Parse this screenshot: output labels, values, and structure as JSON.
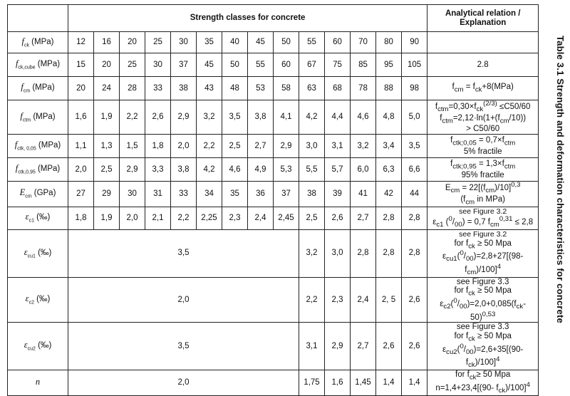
{
  "header": {
    "title": "Strength classes for concrete",
    "explanation": "Analytical relation / Explanation"
  },
  "side_caption": "Table 3.1   Strength and deformation characteristics for concrete",
  "rows": [
    {
      "param": "f<sub>ck</sub> (MPa)",
      "values": [
        "12",
        "16",
        "20",
        "25",
        "30",
        "35",
        "40",
        "45",
        "50",
        "55",
        "60",
        "70",
        "80",
        "90"
      ],
      "explanation": ""
    },
    {
      "param": "f<sub>ck,cube</sub> (MPa)",
      "values": [
        "15",
        "20",
        "25",
        "30",
        "37",
        "45",
        "50",
        "55",
        "60",
        "67",
        "75",
        "85",
        "95",
        "105"
      ],
      "explanation": "2.8"
    },
    {
      "param": "f<sub>cm</sub> (MPa)",
      "values": [
        "20",
        "24",
        "28",
        "33",
        "38",
        "43",
        "48",
        "53",
        "58",
        "63",
        "68",
        "78",
        "88",
        "98"
      ],
      "explanation": "f<sub>cm</sub> = f<sub>ck</sub>+8(MPa)"
    },
    {
      "param": "f<sub>ctm</sub> (MPa)",
      "values": [
        "1,6",
        "1,9",
        "2,2",
        "2,6",
        "2,9",
        "3,2",
        "3,5",
        "3,8",
        "4,1",
        "4,2",
        "4,4",
        "4,6",
        "4,8",
        "5,0"
      ],
      "explanation": "f<sub>ctm</sub>=0,30×f<sub>ck</sub><sup>(2/3)</sup> ≤C50/60<br>f<sub>ctm</sub>=2,12·ln(1+(f<sub>cm</sub>/10))<br>&gt; C50/60"
    },
    {
      "param": "f<sub>ctk, 0,05</sub> (MPa)",
      "values": [
        "1,1",
        "1,3",
        "1,5",
        "1,8",
        "2,0",
        "2,2",
        "2,5",
        "2,7",
        "2,9",
        "3,0",
        "3,1",
        "3,2",
        "3,4",
        "3,5"
      ],
      "explanation": "f<sub>ctk;0,05</sub> = 0,7×f<sub>ctm</sub><br>5% fractile"
    },
    {
      "param": "f<sub>ctk,0,95</sub> (MPa)",
      "values": [
        "2,0",
        "2,5",
        "2,9",
        "3,3",
        "3,8",
        "4,2",
        "4,6",
        "4,9",
        "5,3",
        "5,5",
        "5,7",
        "6,0",
        "6,3",
        "6,6"
      ],
      "explanation": "f<sub>ctk;0,95</sub> = 1,3×f<sub>ctm</sub><br>95% fractile"
    },
    {
      "param": "E<sub>cm</sub> (GPa)",
      "values": [
        "27",
        "29",
        "30",
        "31",
        "33",
        "34",
        "35",
        "36",
        "37",
        "38",
        "39",
        "41",
        "42",
        "44"
      ],
      "explanation": "E<sub>cm</sub> = 22[(f<sub>cm</sub>)/10]<sup>0,3</sup><br>(f<sub>cm</sub> in MPa)"
    },
    {
      "param": "ε<sub>c1</sub> (‰)",
      "values": [
        "1,8",
        "1,9",
        "2,0",
        "2,1",
        "2,2",
        "2,25",
        "2,3",
        "2,4",
        "2,45",
        "2,5",
        "2,6",
        "2,7",
        "2,8",
        "2,8"
      ],
      "explanation": "<span class='bigline'>see Figure 3.2</span><br>ε<sub>c1</sub> (<sup>0</sup>/<sub>00</sub>) = 0,7 f<sub>cm</sub><sup>0,31</sup> ≤ 2,8"
    },
    {
      "param": "ε<sub>cu1</sub> (‰)",
      "merged": "3,5",
      "values": [
        "3,2",
        "3,0",
        "2,8",
        "2,8",
        "2,8"
      ],
      "explanation": "<span class='bigline'>see Figure 3.2</span><br>for f<sub>ck</sub> ≥ 50 Mpa<br>ε<sub>cu1</sub>(<sup>0</sup>/<sub>00</sub>)=2,8+27[(98-f<sub>cm</sub>)/100]<sup>4</sup>"
    },
    {
      "param": "ε<sub>c2</sub> (‰)",
      "merged": "2,0",
      "values": [
        "2,2",
        "2,3",
        "2,4",
        "2, 5",
        "2,6"
      ],
      "explanation": "see Figure 3.3<br>for f<sub>ck</sub> ≥ 50 Mpa<br>ε<sub>c2</sub>(<sup>0</sup>/<sub>00</sub>)=2,0+0,085(f<sub>ck</sub>-50)<sup>0,53</sup>"
    },
    {
      "param": "ε<sub>cu2</sub> (‰)",
      "merged": "3,5",
      "values": [
        "3,1",
        "2,9",
        "2,7",
        "2,6",
        "2,6"
      ],
      "explanation": "see Figure 3.3<br>for f<sub>ck</sub> ≥ 50 Mpa<br>ε<sub>cu2</sub>(<sup>0</sup>/<sub>00</sub>)=2,6+35[(90-f<sub>ck</sub>)/100]<sup>4</sup>"
    },
    {
      "param": "n",
      "merged": "2,0",
      "values": [
        "1,75",
        "1,6",
        "1,45",
        "1,4",
        "1,4"
      ],
      "explanation": "for f<sub>ck</sub>≥ 50 Mpa<br>n=1,4+23,4[(90- f<sub>ck</sub>)/100]<sup>4</sup>"
    }
  ]
}
